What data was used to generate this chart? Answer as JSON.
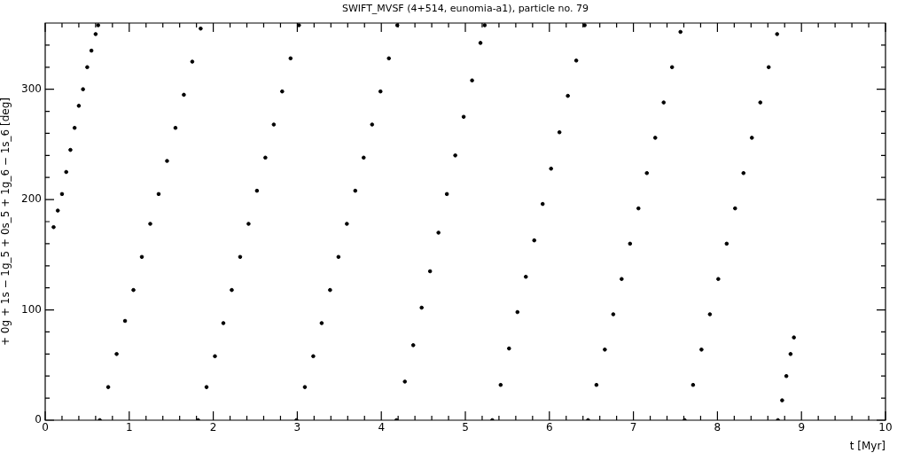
{
  "chart_data": {
    "type": "scatter",
    "title": "SWIFT_MVSF (4+514, eunomia-a1), particle no. 79",
    "xlabel": "t [Myr]",
    "ylabel": "+ 0g + 1s − 1g_5 + 0s_5 + 1g_6 − 1s_6 [deg]",
    "xlim": [
      0,
      10
    ],
    "xticks": [
      0,
      {
        "value": 0.2,
        "label": null
      },
      {
        "value": 0.4,
        "label": null
      },
      {
        "value": 0.6,
        "label": null
      },
      {
        "value": 0.8,
        "label": null
      },
      1,
      {
        "value": 1.2,
        "label": null
      },
      {
        "value": 1.4,
        "label": null
      },
      {
        "value": 1.6,
        "label": null
      },
      {
        "value": 1.8,
        "label": null
      },
      2,
      {
        "value": 2.2,
        "label": null
      },
      {
        "value": 2.4,
        "label": null
      },
      {
        "value": 2.6,
        "label": null
      },
      {
        "value": 2.8,
        "label": null
      },
      3,
      {
        "value": 3.2,
        "label": null
      },
      {
        "value": 3.4,
        "label": null
      },
      {
        "value": 3.6,
        "label": null
      },
      {
        "value": 3.8,
        "label": null
      },
      4,
      {
        "value": 4.2,
        "label": null
      },
      {
        "value": 4.4,
        "label": null
      },
      {
        "value": 4.6,
        "label": null
      },
      {
        "value": 4.8,
        "label": null
      },
      5,
      {
        "value": 5.2,
        "label": null
      },
      {
        "value": 5.4,
        "label": null
      },
      {
        "value": 5.6,
        "label": null
      },
      {
        "value": 5.8,
        "label": null
      },
      6,
      {
        "value": 6.2,
        "label": null
      },
      {
        "value": 6.4,
        "label": null
      },
      {
        "value": 6.6,
        "label": null
      },
      {
        "value": 6.8,
        "label": null
      },
      7,
      {
        "value": 7.2,
        "label": null
      },
      {
        "value": 7.4,
        "label": null
      },
      {
        "value": 7.6,
        "label": null
      },
      {
        "value": 7.8,
        "label": null
      },
      8,
      {
        "value": 8.2,
        "label": null
      },
      {
        "value": 8.4,
        "label": null
      },
      {
        "value": 8.6,
        "label": null
      },
      {
        "value": 8.8,
        "label": null
      },
      9,
      {
        "value": 9.2,
        "label": null
      },
      {
        "value": 9.4,
        "label": null
      },
      {
        "value": 9.6,
        "label": null
      },
      {
        "value": 9.8,
        "label": null
      },
      10
    ],
    "ylim": [
      0,
      360
    ],
    "yticks": [
      0,
      {
        "value": 20,
        "label": null
      },
      {
        "value": 40,
        "label": null
      },
      {
        "value": 60,
        "label": null
      },
      {
        "value": 80,
        "label": null
      },
      100,
      {
        "value": 120,
        "label": null
      },
      {
        "value": 140,
        "label": null
      },
      {
        "value": 160,
        "label": null
      },
      {
        "value": 180,
        "label": null
      },
      200,
      {
        "value": 220,
        "label": null
      },
      {
        "value": 240,
        "label": null
      },
      {
        "value": 260,
        "label": null
      },
      {
        "value": 280,
        "label": null
      },
      300,
      {
        "value": 320,
        "label": null
      },
      {
        "value": 340,
        "label": null
      }
    ],
    "grid": false,
    "legend": false,
    "marker": "circle",
    "series": [
      {
        "color": "#000000",
        "x": [
          0.1,
          0.15,
          0.2,
          0.25,
          0.3,
          0.35,
          0.4,
          0.45,
          0.5,
          0.55,
          0.6,
          0.63,
          0.65,
          0.75,
          0.85,
          0.95,
          1.05,
          1.15,
          1.25,
          1.35,
          1.45,
          1.55,
          1.65,
          1.75,
          1.85,
          1.82,
          1.92,
          2.02,
          2.12,
          2.22,
          2.32,
          2.42,
          2.52,
          2.62,
          2.72,
          2.82,
          2.92,
          3.02,
          2.99,
          3.09,
          3.19,
          3.29,
          3.39,
          3.49,
          3.59,
          3.69,
          3.79,
          3.89,
          3.99,
          4.09,
          4.19,
          4.18,
          4.28,
          4.38,
          4.48,
          4.58,
          4.68,
          4.78,
          4.88,
          4.98,
          5.08,
          5.18,
          5.23,
          5.32,
          5.42,
          5.52,
          5.62,
          5.72,
          5.82,
          5.92,
          6.02,
          6.12,
          6.22,
          6.32,
          6.42,
          6.46,
          6.56,
          6.66,
          6.76,
          6.86,
          6.96,
          7.06,
          7.16,
          7.26,
          7.36,
          7.46,
          7.56,
          7.61,
          7.71,
          7.81,
          7.91,
          8.01,
          8.11,
          8.21,
          8.31,
          8.41,
          8.51,
          8.61,
          8.71,
          8.72,
          8.77,
          8.82,
          8.87,
          8.91
        ],
        "values": [
          175,
          190,
          205,
          225,
          245,
          265,
          285,
          300,
          320,
          335,
          350,
          358,
          0,
          30,
          60,
          90,
          118,
          148,
          178,
          205,
          235,
          265,
          295,
          325,
          355,
          0,
          30,
          58,
          88,
          118,
          148,
          178,
          208,
          238,
          268,
          298,
          328,
          358,
          0,
          30,
          58,
          88,
          118,
          148,
          178,
          208,
          238,
          268,
          298,
          328,
          358,
          0,
          35,
          68,
          102,
          135,
          170,
          205,
          240,
          275,
          308,
          342,
          358,
          0,
          32,
          65,
          98,
          130,
          163,
          196,
          228,
          261,
          294,
          326,
          358,
          0,
          32,
          64,
          96,
          128,
          160,
          192,
          224,
          256,
          288,
          320,
          352,
          0,
          32,
          64,
          96,
          128,
          160,
          192,
          224,
          256,
          288,
          320,
          350,
          0,
          18,
          40,
          60,
          75
        ]
      }
    ]
  }
}
